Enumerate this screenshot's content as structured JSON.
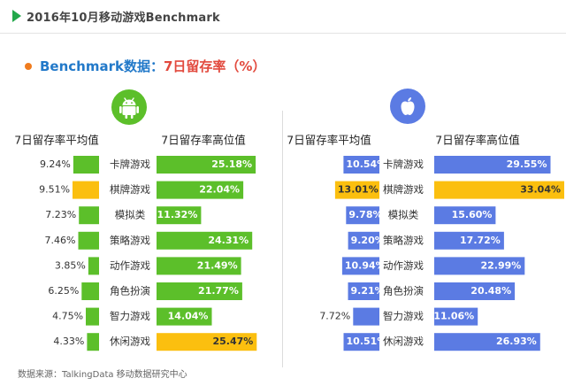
{
  "header": {
    "title": "2016年10月移动游戏Benchmark"
  },
  "subtitle": {
    "part1": "Benchmark数据：",
    "part2": "7日留存率（%）"
  },
  "footer": {
    "source": "数据来源：TalkingData 移动数据研究中心"
  },
  "icons": {
    "left": "android-icon",
    "right": "apple-icon"
  },
  "colors": {
    "green": "#5cbf2a",
    "yellow": "#fbbf0f",
    "blue": "#5b7be3",
    "white_text": "#ffffff"
  },
  "chart_data": [
    {
      "type": "bar",
      "platform": "Android",
      "icon": "android-icon",
      "categories": [
        "卡牌游戏",
        "棋牌游戏",
        "模拟类",
        "策略游戏",
        "动作游戏",
        "角色扮演",
        "智力游戏",
        "休闲游戏"
      ],
      "col_avg_header": "7日留存率平均值",
      "col_high_header": "7日留存率高位值",
      "series": [
        {
          "name": "7日留存率平均值",
          "values": [
            9.24,
            9.51,
            7.23,
            7.46,
            3.85,
            6.25,
            4.75,
            4.33
          ],
          "labels": [
            "9.24%",
            "9.51%",
            "7.23%",
            "7.46%",
            "3.85%",
            "6.25%",
            "4.75%",
            "4.33%"
          ],
          "highlight": [
            1
          ]
        },
        {
          "name": "7日留存率高位值",
          "values": [
            25.18,
            22.04,
            11.32,
            24.31,
            21.49,
            21.77,
            14.04,
            25.47
          ],
          "labels": [
            "25.18%",
            "22.04%",
            "11.32%",
            "24.31%",
            "21.49%",
            "21.77%",
            "14.04%",
            "25.47%"
          ],
          "highlight": [
            7
          ]
        }
      ]
    },
    {
      "type": "bar",
      "platform": "iOS",
      "icon": "apple-icon",
      "categories": [
        "卡牌游戏",
        "棋牌游戏",
        "模拟类",
        "策略游戏",
        "动作游戏",
        "角色扮演",
        "智力游戏",
        "休闲游戏"
      ],
      "col_avg_header": "7日留存率平均值",
      "col_high_header": "7日留存率高位值",
      "series": [
        {
          "name": "7日留存率平均值",
          "values": [
            10.54,
            13.01,
            9.78,
            9.2,
            10.94,
            9.21,
            7.72,
            10.51
          ],
          "labels": [
            "10.54%",
            "13.01%",
            "9.78%",
            "9.20%",
            "10.94%",
            "9.21%",
            "7.72%",
            "10.51%"
          ],
          "highlight": [
            1
          ]
        },
        {
          "name": "7日留存率高位值",
          "values": [
            29.55,
            33.04,
            15.6,
            17.72,
            22.99,
            20.48,
            11.06,
            26.93
          ],
          "labels": [
            "29.55%",
            "33.04%",
            "15.60%",
            "17.72%",
            "22.99%",
            "20.48%",
            "11.06%",
            "26.93%"
          ],
          "highlight": [
            1
          ]
        }
      ]
    }
  ]
}
